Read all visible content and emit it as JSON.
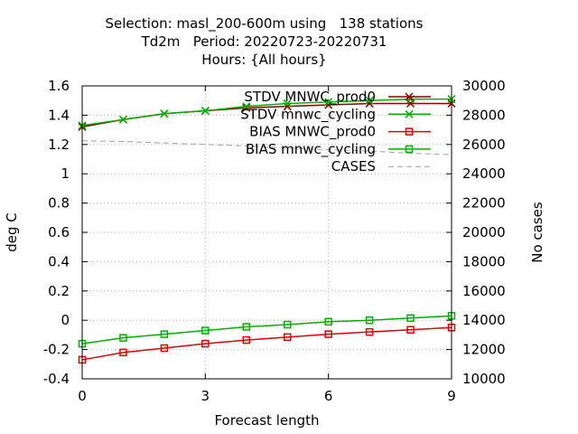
{
  "title_lines": [
    "Selection: masl_200-600m using   138 stations",
    "Td2m   Period: 20220723-20220731",
    "Hours: {All hours}"
  ],
  "chart_data": {
    "type": "line",
    "xlabel": "Forecast length",
    "ylabel": "deg C",
    "y2label": "No cases",
    "xlim": [
      0,
      9
    ],
    "ylim": [
      -0.4,
      1.6
    ],
    "y2lim": [
      10000,
      30000
    ],
    "xticks": [
      0,
      3,
      6,
      9
    ],
    "yticks": [
      -0.4,
      -0.2,
      0,
      0.2,
      0.4,
      0.6,
      0.8,
      1,
      1.2,
      1.4,
      1.6
    ],
    "ytick_labels": [
      "-0.4",
      "-0.2",
      "0",
      "0.2",
      "0.4",
      "0.6",
      "0.8",
      "1",
      "1.2",
      "1.4",
      "1.6"
    ],
    "y2ticks": [
      10000,
      12000,
      14000,
      16000,
      18000,
      20000,
      22000,
      24000,
      26000,
      28000,
      30000
    ],
    "grid": true,
    "legend_position": "top-right",
    "x": [
      0,
      1,
      2,
      3,
      4,
      5,
      6,
      7,
      8,
      9
    ],
    "series": [
      {
        "name": "STDV MNWC_prod0",
        "color": "#8b0000",
        "marker": "x",
        "axis": "y",
        "values": [
          1.32,
          1.37,
          1.41,
          1.43,
          1.45,
          1.46,
          1.47,
          1.48,
          1.48,
          1.48
        ]
      },
      {
        "name": "STDV mnwc_cycling",
        "color": "#00b000",
        "marker": "x",
        "axis": "y",
        "values": [
          1.33,
          1.37,
          1.41,
          1.43,
          1.46,
          1.48,
          1.49,
          1.5,
          1.51,
          1.51
        ]
      },
      {
        "name": "BIAS MNWC_prod0",
        "color": "#e00000",
        "marker": "square",
        "axis": "y",
        "values": [
          -0.27,
          -0.22,
          -0.19,
          -0.16,
          -0.135,
          -0.115,
          -0.095,
          -0.08,
          -0.065,
          -0.05
        ]
      },
      {
        "name": "BIAS mnwc_cycling",
        "color": "#00b000",
        "marker": "square",
        "axis": "y",
        "values": [
          -0.16,
          -0.12,
          -0.095,
          -0.07,
          -0.045,
          -0.03,
          -0.01,
          0.0,
          0.015,
          0.03
        ]
      },
      {
        "name": "CASES",
        "color": "#a0a0a0",
        "marker": "none",
        "dashed": true,
        "axis": "y2",
        "values": [
          26250,
          26200,
          26100,
          26000,
          25900,
          25750,
          25650,
          25550,
          25400,
          25300
        ]
      }
    ]
  }
}
